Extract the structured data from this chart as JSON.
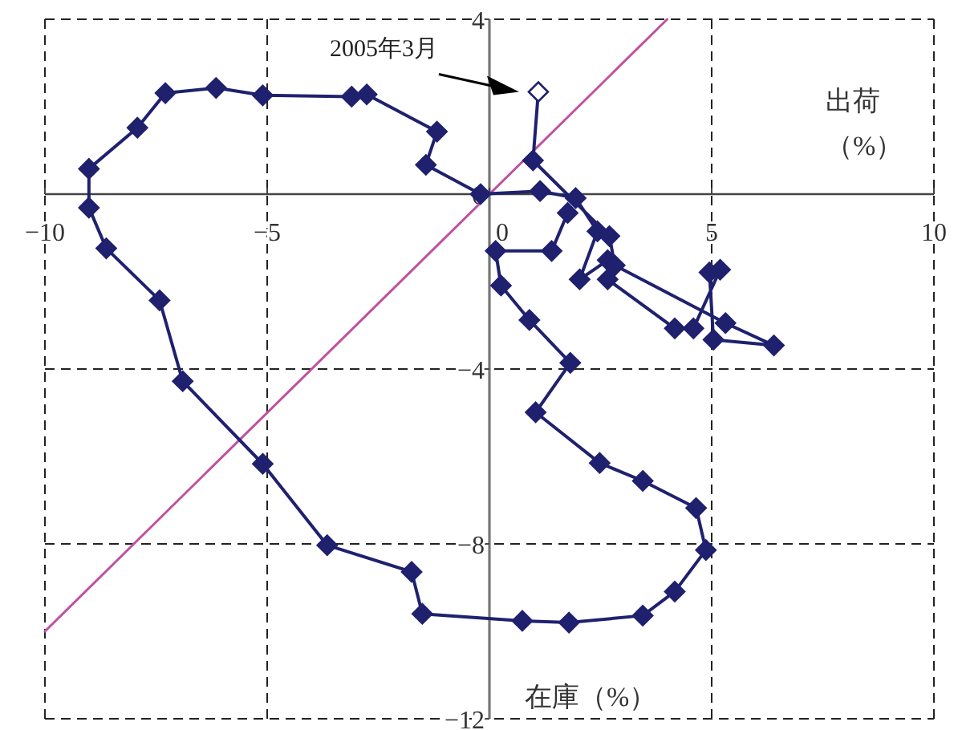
{
  "chart_data": {
    "type": "line",
    "xlabel": "在庫（%）",
    "ylabel": "出荷（%）",
    "marker": "diamond",
    "grid": true,
    "xlim": [
      -10,
      10
    ],
    "ylim": [
      -12,
      4
    ],
    "xticks": [
      -10,
      -5,
      0,
      5,
      10
    ],
    "yticks": [
      4,
      0,
      -4,
      -8,
      -12
    ],
    "annotations": [
      "2005年3月"
    ],
    "series": [
      {
        "color": "#1f216e",
        "x": [
          1.76,
          1.4,
          0.14,
          0.26,
          0.9,
          1.82,
          1.04,
          2.48,
          3.45,
          4.65,
          4.87,
          4.17,
          3.45,
          1.79,
          0.74,
          -1.51,
          -1.75,
          -3.65,
          -5.1,
          -6.9,
          -7.42,
          -8.62,
          -9.01,
          -9.01,
          -7.92,
          -7.29,
          -6.15,
          -5.1,
          -3.1,
          -2.76,
          -1.18,
          -1.43,
          -0.2,
          1.14,
          1.94,
          2.43,
          2.03,
          2.66,
          2.66,
          4.17,
          4.59,
          5.19,
          4.95,
          5.04,
          6.4,
          5.31,
          2.82,
          2.7,
          0.98,
          1.1
        ],
        "values": [
          -0.43,
          -1.3,
          -1.3,
          -2.09,
          -2.88,
          -3.86,
          -4.99,
          -6.15,
          -6.56,
          -7.18,
          -8.14,
          -9.09,
          -9.64,
          -9.8,
          -9.76,
          -9.6,
          -8.64,
          -8.03,
          -6.17,
          -4.28,
          -2.43,
          -1.24,
          -0.31,
          0.58,
          1.52,
          2.31,
          2.43,
          2.26,
          2.23,
          2.28,
          1.43,
          0.67,
          0.0,
          0.07,
          -0.09,
          -0.85,
          -1.95,
          -1.51,
          -1.95,
          -3.07,
          -3.07,
          -1.73,
          -1.79,
          -3.33,
          -3.46,
          -2.95,
          -1.63,
          -0.96,
          0.77,
          2.34
        ]
      },
      {
        "color": "#c0509f",
        "marker": "none",
        "x": [
          -10,
          4
        ],
        "values": [
          -10,
          4
        ]
      }
    ]
  }
}
